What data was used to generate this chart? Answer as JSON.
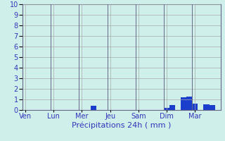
{
  "title": "",
  "xlabel": "Précipitations 24h ( mm )",
  "ylabel": "",
  "ylim": [
    0,
    10
  ],
  "yticks": [
    0,
    1,
    2,
    3,
    4,
    5,
    6,
    7,
    8,
    9,
    10
  ],
  "background_color": "#cff0ea",
  "bar_color": "#1a3fcc",
  "grid_color": "#aaaaaa",
  "text_color": "#3333bb",
  "n_bars": 35,
  "bar_values": [
    0,
    0,
    0,
    0,
    0,
    0,
    0,
    0,
    0,
    0,
    0,
    0,
    0.4,
    0,
    0,
    0,
    0,
    0,
    0,
    0,
    0,
    0,
    0,
    0,
    0,
    0.2,
    0.5,
    0,
    1.2,
    1.3,
    0.6,
    0,
    0.55,
    0.5,
    0
  ],
  "day_labels": [
    "Ven",
    "Lun",
    "Mer",
    "Jeu",
    "Sam",
    "Dim",
    "Mar"
  ],
  "day_positions": [
    0,
    5,
    10,
    15,
    20,
    25,
    30
  ],
  "label_fontsize": 7,
  "xlabel_fontsize": 8,
  "ytick_fontsize": 7
}
